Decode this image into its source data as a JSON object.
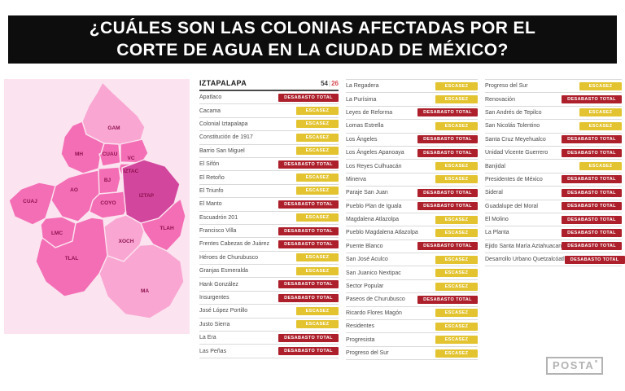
{
  "header": {
    "title_line1": "¿CUÁLES SON LAS COLONIAS AFECTADAS POR EL",
    "title_line2": "CORTE DE AGUA EN LA CIUDAD DE MÉXICO?"
  },
  "map": {
    "regions": [
      {
        "id": "gam",
        "label": "GAM",
        "shade": "light"
      },
      {
        "id": "mh",
        "label": "MH",
        "shade": "medium"
      },
      {
        "id": "cuau",
        "label": "CUAU",
        "shade": "medium"
      },
      {
        "id": "vc",
        "label": "VC",
        "shade": "medium"
      },
      {
        "id": "iztac",
        "label": "IZTAC",
        "shade": "medium"
      },
      {
        "id": "bj",
        "label": "BJ",
        "shade": "medium"
      },
      {
        "id": "ao",
        "label": "AO",
        "shade": "medium"
      },
      {
        "id": "cuaj",
        "label": "CUAJ",
        "shade": "medium"
      },
      {
        "id": "coyo",
        "label": "COYO",
        "shade": "medium"
      },
      {
        "id": "iztap",
        "label": "IZTAP",
        "shade": "dark"
      },
      {
        "id": "tlah",
        "label": "TLAH",
        "shade": "medium"
      },
      {
        "id": "lmc",
        "label": "LMC",
        "shade": "medium"
      },
      {
        "id": "xoch",
        "label": "XOCH",
        "shade": "light"
      },
      {
        "id": "tlal",
        "label": "TLAL",
        "shade": "medium"
      },
      {
        "id": "ma",
        "label": "MA",
        "shade": "light"
      }
    ]
  },
  "chart_data": {
    "type": "table",
    "title": "IZTAPALAPA",
    "counts": {
      "total": "54",
      "separator": "|",
      "secondary": "26"
    },
    "status_labels": {
      "escasez": "ESCASEZ",
      "desabasto": "DESABASTO TOTAL"
    },
    "columns": [
      [
        {
          "name": "Apatlaco",
          "status": "desabasto"
        },
        {
          "name": "Cacama",
          "status": "escasez"
        },
        {
          "name": "Colonial Iztapalapa",
          "status": "escasez"
        },
        {
          "name": "Constitución de 1917",
          "status": "escasez"
        },
        {
          "name": "Barrio San Miguel",
          "status": "escasez"
        },
        {
          "name": "El Sifón",
          "status": "desabasto"
        },
        {
          "name": "El Retoño",
          "status": "escasez"
        },
        {
          "name": "El Triunfo",
          "status": "escasez"
        },
        {
          "name": "El Manto",
          "status": "desabasto"
        },
        {
          "name": "Escuadrón 201",
          "status": "escasez"
        },
        {
          "name": "Francisco Villa",
          "status": "desabasto"
        },
        {
          "name": "Frentes Cabezas de Juárez",
          "status": "desabasto"
        },
        {
          "name": "Héroes de Churubusco",
          "status": "escasez"
        },
        {
          "name": "Granjas Esmeralda",
          "status": "escasez"
        },
        {
          "name": "Hank González",
          "status": "desabasto"
        },
        {
          "name": "Insurgentes",
          "status": "desabasto"
        },
        {
          "name": "José López Portillo",
          "status": "escasez"
        },
        {
          "name": "Justo Sierra",
          "status": "escasez"
        },
        {
          "name": "La Era",
          "status": "desabasto"
        },
        {
          "name": "Las Peñas",
          "status": "desabasto"
        }
      ],
      [
        {
          "name": "La Regadera",
          "status": "escasez"
        },
        {
          "name": "La Purísima",
          "status": "escasez"
        },
        {
          "name": "Leyes de Reforma",
          "status": "desabasto"
        },
        {
          "name": "Lomas Estrella",
          "status": "escasez"
        },
        {
          "name": "Los Ángeles",
          "status": "desabasto"
        },
        {
          "name": "Los Ángeles Apanoaya",
          "status": "desabasto"
        },
        {
          "name": "Los Reyes Culhuacán",
          "status": "escasez"
        },
        {
          "name": "Minerva",
          "status": "escasez"
        },
        {
          "name": "Paraje San Juan",
          "status": "desabasto"
        },
        {
          "name": "Pueblo Plan de Iguala",
          "status": "desabasto"
        },
        {
          "name": "Magdalena Atlazolpa",
          "status": "escasez"
        },
        {
          "name": "Pueblo Magdalena Atlazolpa",
          "status": "escasez"
        },
        {
          "name": "Puente Blanco",
          "status": "desabasto"
        },
        {
          "name": "San José Aculco",
          "status": "escasez"
        },
        {
          "name": "San Juanico Nextipac",
          "status": "escasez"
        },
        {
          "name": "Sector Popular",
          "status": "escasez"
        },
        {
          "name": "Paseos de Churubusco",
          "status": "desabasto"
        },
        {
          "name": "Ricardo Flores Magón",
          "status": "escasez"
        },
        {
          "name": "Residentes",
          "status": "escasez"
        },
        {
          "name": "Progresista",
          "status": "escasez"
        },
        {
          "name": "Progreso del Sur",
          "status": "escasez"
        }
      ],
      [
        {
          "name": "Progreso del Sur",
          "status": "escasez"
        },
        {
          "name": "Renovación",
          "status": "desabasto"
        },
        {
          "name": "San Andrés de Tepilco",
          "status": "escasez"
        },
        {
          "name": "San Nicolás Tolentino",
          "status": "escasez"
        },
        {
          "name": "Santa Cruz Meyehualco",
          "status": "desabasto"
        },
        {
          "name": "Unidad Vicente Guerrero",
          "status": "desabasto"
        },
        {
          "name": "Banjidal",
          "status": "escasez"
        },
        {
          "name": "Presidentes de México",
          "status": "desabasto"
        },
        {
          "name": "Sideral",
          "status": "desabasto"
        },
        {
          "name": "Guadalupe del Moral",
          "status": "desabasto"
        },
        {
          "name": "El Molino",
          "status": "desabasto"
        },
        {
          "name": "La Planta",
          "status": "desabasto"
        },
        {
          "name": "Ejido Santa María Aztahuacan",
          "status": "desabasto"
        },
        {
          "name": "Desarrollo Urbano Quetzalcóatl",
          "status": "desabasto"
        }
      ]
    ]
  },
  "footer": {
    "brand": "POSTA"
  },
  "colors": {
    "header_bg": "#0D0D0D",
    "badge_escasez": "#E3C430",
    "badge_desabasto": "#AC1F2B",
    "count_secondary": "#D44A55",
    "map_bg": "#FCE3F0",
    "map_light": "#F9A7D2",
    "map_medium": "#F46EB5",
    "map_dark": "#D2479D"
  }
}
